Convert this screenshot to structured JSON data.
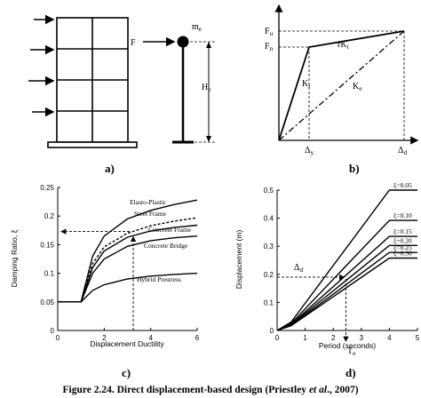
{
  "panel_a": {
    "force_label": "F",
    "mass_label": "m",
    "mass_sub": "e",
    "height_label": "H",
    "height_sub": "e",
    "sublabel": "a)"
  },
  "panel_b": {
    "fu_label": "F",
    "fu_sub": "u",
    "fn_label": "F",
    "fn_sub": "n",
    "rk_label": "rK",
    "rk_sub": "i",
    "ki_label": "K",
    "ki_sub": "i",
    "ke_label": "K",
    "ke_sub": "e",
    "dy_label": "Δ",
    "dy_sub": "y",
    "dd_label": "Δ",
    "dd_sub": "d",
    "sublabel": "b)"
  },
  "panel_c": {
    "sublabel": "c)",
    "chart_data": {
      "type": "line",
      "xlabel": "Displacement Ductility",
      "ylabel": "Damping Ratio, ξ",
      "xlim": [
        0,
        6
      ],
      "ylim": [
        0,
        0.25
      ],
      "xticks": [
        "0",
        "2",
        "4",
        "6"
      ],
      "yticks": [
        "0",
        "0.05",
        "0.1",
        "0.15",
        "0.2",
        "0.25"
      ],
      "series": [
        {
          "name": "Elasto-Plastic",
          "x": [
            0,
            1,
            1.5,
            2,
            3,
            4,
            5,
            6
          ],
          "y": [
            0.05,
            0.05,
            0.13,
            0.165,
            0.195,
            0.21,
            0.22,
            0.228
          ]
        },
        {
          "name": "Steel Frame",
          "x": [
            0,
            1,
            1.5,
            2,
            3,
            4,
            5,
            6
          ],
          "y": [
            0.05,
            0.05,
            0.117,
            0.146,
            0.17,
            0.183,
            0.191,
            0.197
          ]
        },
        {
          "name": "Concrete Frame",
          "x": [
            0,
            1,
            1.5,
            2,
            3,
            4,
            5,
            6
          ],
          "y": [
            0.05,
            0.05,
            0.11,
            0.139,
            0.163,
            0.174,
            0.18,
            0.184
          ]
        },
        {
          "name": "Concrete Bridge",
          "x": [
            0,
            1,
            1.5,
            2,
            3,
            4,
            5,
            6
          ],
          "y": [
            0.05,
            0.05,
            0.1,
            0.125,
            0.147,
            0.157,
            0.162,
            0.165
          ]
        },
        {
          "name": "Hybrid Prestress",
          "x": [
            0,
            1,
            1.5,
            2,
            3,
            4,
            5,
            6
          ],
          "y": [
            0.05,
            0.05,
            0.07,
            0.08,
            0.09,
            0.095,
            0.098,
            0.1
          ]
        }
      ],
      "guide": {
        "x": 3.25,
        "y": 0.173
      }
    }
  },
  "panel_d": {
    "sublabel": "d)",
    "delta_label": "Δ",
    "delta_sub": "d",
    "t_label": "T",
    "t_sub": "e",
    "chart_data": {
      "type": "line",
      "xlabel": "Period (seconds)",
      "ylabel": "Displacement (m)",
      "xlim": [
        0,
        5
      ],
      "ylim": [
        0,
        0.5
      ],
      "xticks": [
        "0",
        "1",
        "2",
        "3",
        "4",
        "5"
      ],
      "yticks": [
        "0",
        "0.1",
        "0.2",
        "0.3",
        "0.4",
        "0.5"
      ],
      "series": [
        {
          "name": "ξ=0.05",
          "x": [
            0,
            0.5,
            4,
            5
          ],
          "y": [
            0,
            0.03,
            0.5,
            0.5
          ]
        },
        {
          "name": "ξ=0.10",
          "x": [
            0,
            0.5,
            4,
            5
          ],
          "y": [
            0,
            0.025,
            0.392,
            0.392
          ]
        },
        {
          "name": "ξ=0.15",
          "x": [
            0,
            0.5,
            4,
            5
          ],
          "y": [
            0,
            0.022,
            0.335,
            0.335
          ]
        },
        {
          "name": "ξ=0.20",
          "x": [
            0,
            0.5,
            4,
            5
          ],
          "y": [
            0,
            0.02,
            0.303,
            0.303
          ]
        },
        {
          "name": "ξ=0.25",
          "x": [
            0,
            0.5,
            4,
            5
          ],
          "y": [
            0,
            0.018,
            0.278,
            0.278
          ]
        },
        {
          "name": "ξ=0.30",
          "x": [
            0,
            0.5,
            4,
            5
          ],
          "y": [
            0,
            0.017,
            0.258,
            0.258
          ]
        }
      ],
      "guide": {
        "x": 2.45,
        "y": 0.19
      }
    }
  },
  "caption": {
    "prefix": "Figure 2.24. Direct displacement-based design (Priestley ",
    "italic": "et al",
    "suffix": "., 2007)"
  }
}
